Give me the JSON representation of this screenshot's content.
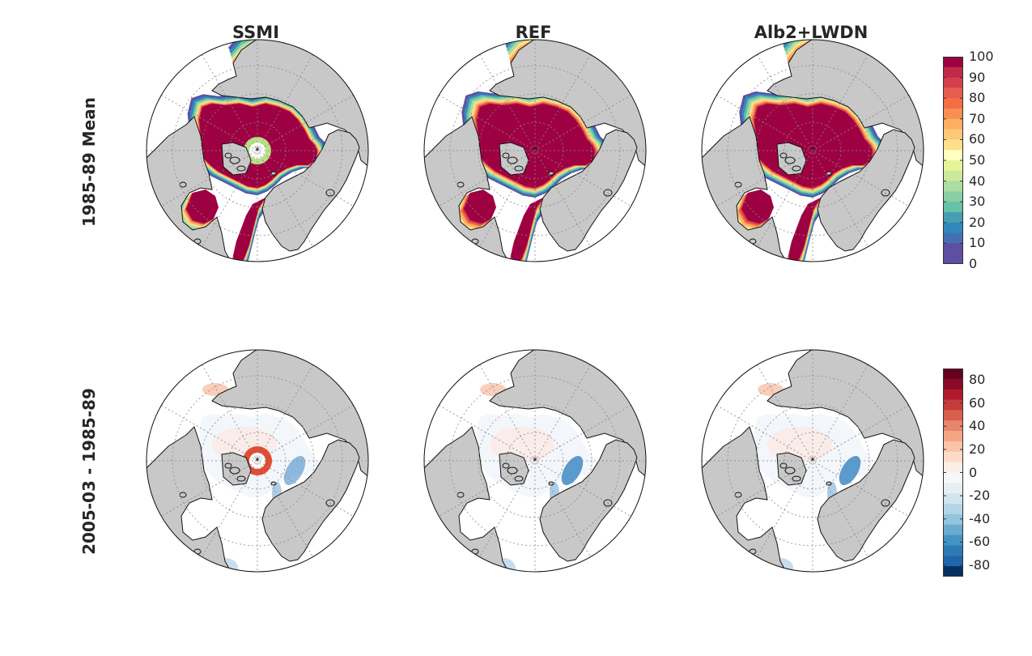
{
  "columns": [
    "SSMI",
    "REF",
    "Alb2+LWDN"
  ],
  "rows": [
    "1985-89 Mean",
    "2005-03 - 1985-89"
  ],
  "colorbar_top": {
    "ticks": [
      "100",
      "90",
      "80",
      "70",
      "60",
      "50",
      "40",
      "30",
      "20",
      "10",
      "0"
    ],
    "colors": [
      "#9e0142",
      "#c2294a",
      "#d53e4f",
      "#e65d4f",
      "#f46d43",
      "#f98e52",
      "#fdae61",
      "#fdc877",
      "#fee08b",
      "#ffffbf",
      "#e6f598",
      "#cbe99d",
      "#abdda4",
      "#88cfa4",
      "#66c2a5",
      "#479db2",
      "#3288bd",
      "#4470b0",
      "#5e4fa2",
      "#5e4fa2"
    ]
  },
  "colorbar_bottom": {
    "ticks": [
      "80",
      "60",
      "40",
      "20",
      "0",
      "-20",
      "-40",
      "-60",
      "-80"
    ],
    "colors": [
      "#67001f",
      "#8a0b25",
      "#b2182b",
      "#c43c3c",
      "#d6604d",
      "#e7866a",
      "#f4a582",
      "#f9c4a9",
      "#fddbc7",
      "#fbeee6",
      "#f7f7f7",
      "#e6eff4",
      "#d1e5f0",
      "#b4d5e8",
      "#92c5de",
      "#6aacd0",
      "#4393c3",
      "#2f79b5",
      "#2166ac",
      "#053061"
    ]
  },
  "colors": {
    "land": "#c8c8c8",
    "ice_full": "#9e0142",
    "edge_band": [
      "#5e4fa2",
      "#3288bd",
      "#66c2a5",
      "#abdda4",
      "#fee08b",
      "#fdae61",
      "#f46d43",
      "#d53e4f"
    ],
    "hole_ring": "#b8e186",
    "diff_hole": "#e34a33",
    "diff_neg": "#4a90c8",
    "diff_pos": "#f4a582",
    "diff_base": "#f3f6fb"
  }
}
